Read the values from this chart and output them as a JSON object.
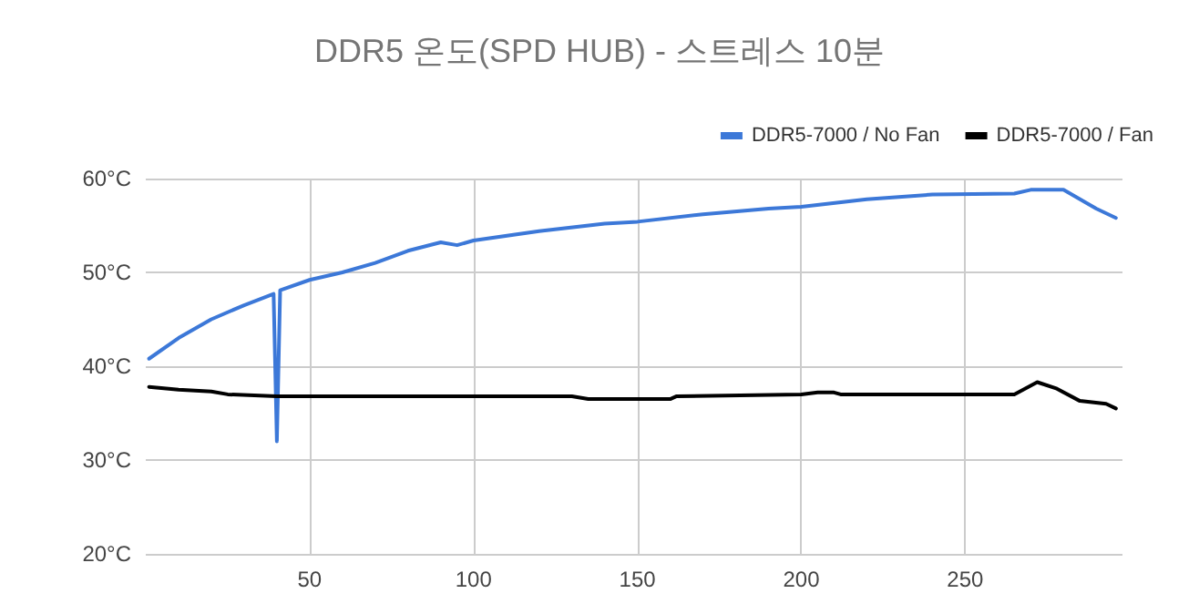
{
  "chart_data": {
    "type": "line",
    "title": "DDR5 온도(SPD HUB) - 스트레스 10분",
    "xlim": [
      0,
      298
    ],
    "xticks": [
      50,
      100,
      150,
      200,
      250
    ],
    "ylim": [
      20,
      60
    ],
    "yticks": [
      {
        "value": 20,
        "label": "20°C"
      },
      {
        "value": 30,
        "label": "30°C"
      },
      {
        "value": 40,
        "label": "40°C"
      },
      {
        "value": 50,
        "label": "50°C"
      },
      {
        "value": 60,
        "label": "60°C"
      }
    ],
    "grid": true,
    "legend": "top right",
    "marker": "none",
    "line_style": "solid",
    "series": [
      {
        "name": "DDR5-7000 / No Fan",
        "color": "#3c78d8",
        "x": [
          1,
          10,
          20,
          30,
          39,
          40,
          41,
          50,
          60,
          70,
          80,
          90,
          95,
          100,
          120,
          140,
          150,
          170,
          190,
          200,
          220,
          240,
          265,
          270,
          280,
          290,
          296
        ],
        "values": [
          40.8,
          43,
          45,
          46.5,
          47.7,
          32,
          48.1,
          49.2,
          50,
          51,
          52.3,
          53.2,
          52.9,
          53.4,
          54.4,
          55.2,
          55.4,
          56.2,
          56.8,
          57,
          57.8,
          58.3,
          58.4,
          58.8,
          58.8,
          56.8,
          55.8
        ]
      },
      {
        "name": "DDR5-7000 / Fan",
        "color": "#000000",
        "x": [
          1,
          10,
          20,
          25,
          40,
          100,
          130,
          135,
          160,
          162,
          200,
          205,
          210,
          212,
          265,
          272,
          278,
          285,
          293,
          296
        ],
        "values": [
          37.8,
          37.5,
          37.3,
          37,
          36.8,
          36.8,
          36.8,
          36.5,
          36.5,
          36.8,
          37,
          37.2,
          37.2,
          37,
          37,
          38.3,
          37.6,
          36.3,
          36,
          35.5
        ]
      }
    ]
  }
}
